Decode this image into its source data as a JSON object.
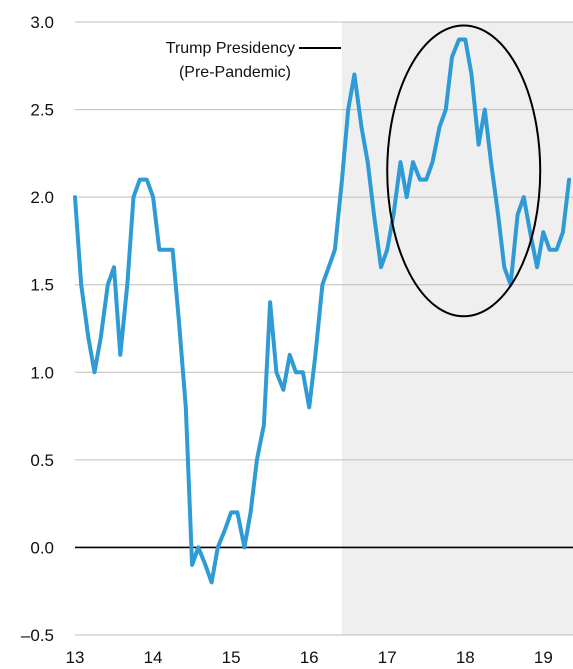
{
  "chart_data": {
    "type": "line",
    "title": "",
    "xlabel": "",
    "ylabel": "",
    "x_ticks": [
      "13",
      "14",
      "15",
      "16",
      "17",
      "18",
      "19"
    ],
    "y_ticks": [
      "3.0",
      "2.5",
      "2.0",
      "1.5",
      "1.0",
      "0.5",
      "0.0",
      "–0.5"
    ],
    "xlim": [
      2013.0,
      2019.38
    ],
    "ylim": [
      -0.5,
      3.0
    ],
    "grid": "horizontal",
    "zero_line": true,
    "shaded_region": {
      "x_start": 2016.42,
      "x_end": 2019.38,
      "label_lines": [
        "Trump Presidency",
        "(Pre-Pandemic)"
      ]
    },
    "highlight_ellipse": {
      "x_center": 2017.98,
      "y_center": 2.15,
      "x_radius": 0.98,
      "y_radius": 0.83
    },
    "series": [
      {
        "color": "#2e9bd6",
        "x": [
          2013.0,
          2013.08,
          2013.17,
          2013.25,
          2013.33,
          2013.42,
          2013.5,
          2013.58,
          2013.67,
          2013.75,
          2013.83,
          2013.92,
          2014.0,
          2014.08,
          2014.17,
          2014.25,
          2014.33,
          2014.42,
          2014.5,
          2014.58,
          2014.67,
          2014.75,
          2014.83,
          2014.92,
          2015.0,
          2015.08,
          2015.17,
          2015.25,
          2015.33,
          2015.42,
          2015.5,
          2015.58,
          2015.67,
          2015.75,
          2015.83,
          2015.92,
          2016.0,
          2016.08,
          2016.17,
          2016.25,
          2016.33,
          2016.42,
          2016.5,
          2016.58,
          2016.67,
          2016.75,
          2016.83,
          2016.92,
          2017.0,
          2017.08,
          2017.17,
          2017.25,
          2017.33,
          2017.42,
          2017.5,
          2017.58,
          2017.67,
          2017.75,
          2017.83,
          2017.92,
          2018.0,
          2018.08,
          2018.17,
          2018.25,
          2018.33,
          2018.42,
          2018.5,
          2018.58,
          2018.67,
          2018.75,
          2018.83,
          2018.92,
          2019.0,
          2019.08,
          2019.17,
          2019.25,
          2019.33
        ],
        "values": [
          2.0,
          1.5,
          1.2,
          1.0,
          1.2,
          1.5,
          1.6,
          1.1,
          1.5,
          2.0,
          2.1,
          2.1,
          2.0,
          1.7,
          1.7,
          1.7,
          1.3,
          0.8,
          -0.1,
          0.0,
          -0.1,
          -0.2,
          0.0,
          0.1,
          0.2,
          0.2,
          0.0,
          0.2,
          0.5,
          0.7,
          1.4,
          1.0,
          0.9,
          1.1,
          1.0,
          1.0,
          0.8,
          1.1,
          1.5,
          1.6,
          1.7,
          2.1,
          2.5,
          2.7,
          2.4,
          2.2,
          1.9,
          1.6,
          1.7,
          1.9,
          2.2,
          2.0,
          2.2,
          2.1,
          2.1,
          2.2,
          2.4,
          2.5,
          2.8,
          2.9,
          2.9,
          2.7,
          2.3,
          2.5,
          2.2,
          1.9,
          1.6,
          1.5,
          1.9,
          2.0,
          1.8,
          1.6,
          1.8,
          1.7,
          1.7,
          1.8,
          2.1
        ]
      }
    ]
  }
}
